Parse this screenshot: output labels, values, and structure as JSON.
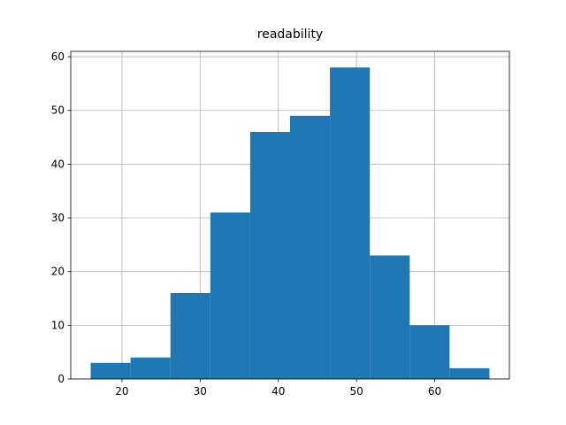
{
  "chart_data": {
    "type": "histogram",
    "title": "readability",
    "bins": [
      16,
      21.1,
      26.2,
      31.3,
      36.4,
      41.5,
      46.6,
      51.7,
      56.8,
      61.9,
      67
    ],
    "counts": [
      3,
      4,
      16,
      31,
      46,
      49,
      58,
      23,
      10,
      2
    ],
    "color": "#1f77b4",
    "xlim": [
      13.45,
      69.55
    ],
    "xticks": [
      20,
      30,
      40,
      50,
      60
    ],
    "ylim": [
      0,
      61
    ],
    "yticks": [
      0,
      10,
      20,
      30,
      40,
      50,
      60
    ],
    "grid": true
  }
}
